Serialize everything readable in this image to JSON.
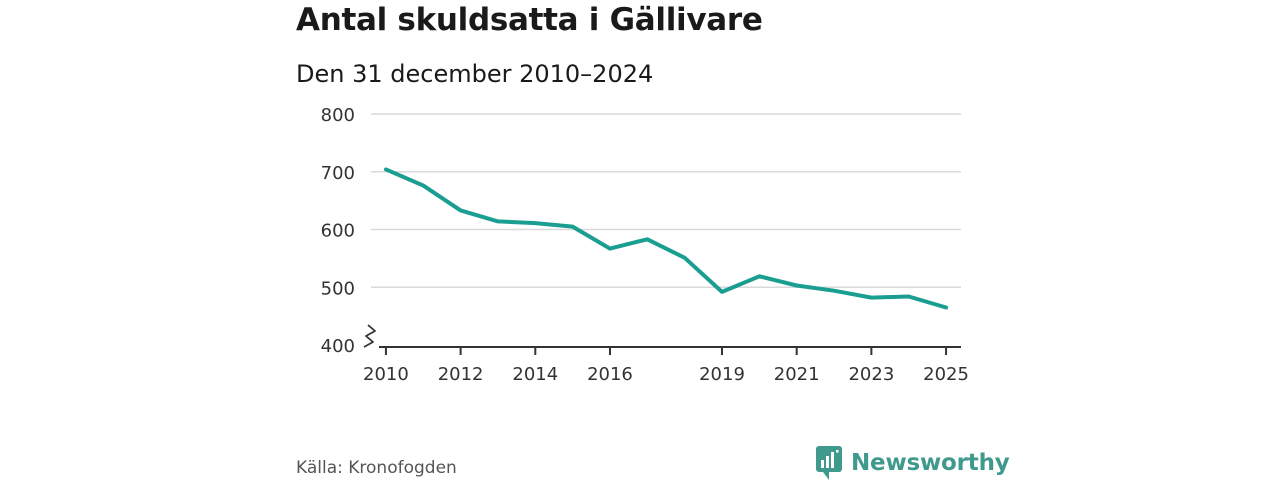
{
  "header": {
    "title": "Antal skuldsatta i Gällivare",
    "subtitle": "Den 31 december 2010–2024"
  },
  "footer": {
    "source": "Källa: Kronofogden",
    "brand": "Newsworthy"
  },
  "colors": {
    "line": "#1a9e92",
    "grid": "#d9d9d9",
    "axis": "#333333",
    "brand": "#3f9a8d"
  },
  "chart_data": {
    "type": "line",
    "title": "Antal skuldsatta i Gällivare",
    "subtitle": "Den 31 december 2010–2024",
    "xlabel": "",
    "ylabel": "",
    "ylim": [
      400,
      800
    ],
    "xlim": [
      2009.6,
      2025.4
    ],
    "y_ticks": [
      400,
      500,
      600,
      700,
      800
    ],
    "x_ticks": [
      2010,
      2012,
      2014,
      2016,
      2019,
      2021,
      2023,
      2025
    ],
    "y_axis_break": true,
    "grid": true,
    "series": [
      {
        "name": "Antal skuldsatta",
        "x": [
          2010,
          2011,
          2012,
          2013,
          2014,
          2015,
          2016,
          2017,
          2018,
          2019,
          2020,
          2021,
          2022,
          2023,
          2024,
          2025
        ],
        "values": [
          704,
          676,
          633,
          614,
          611,
          605,
          567,
          583,
          551,
          492,
          519,
          503,
          494,
          482,
          484,
          465
        ]
      }
    ]
  }
}
